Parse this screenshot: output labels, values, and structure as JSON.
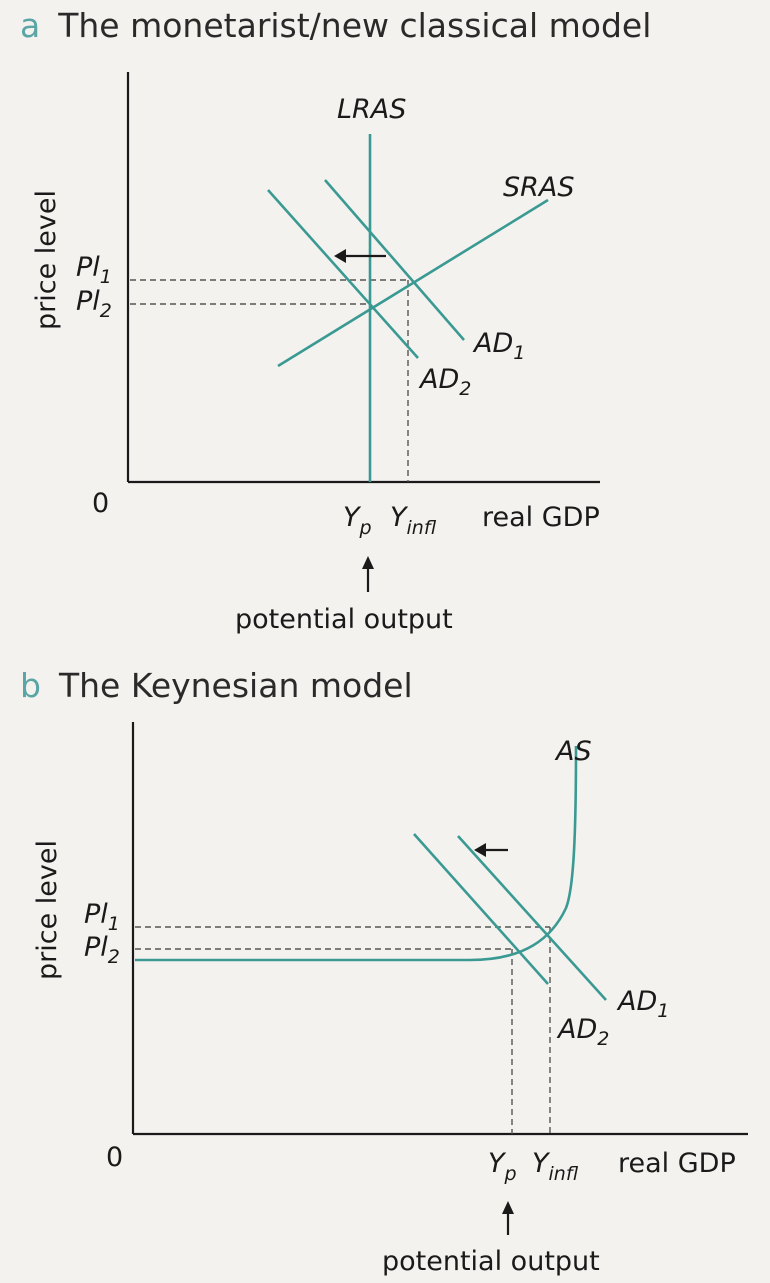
{
  "panel_a": {
    "letter": "a",
    "title": "The monetarist/new classical model",
    "y_axis_label": "price level",
    "x_axis_label": "real GDP",
    "origin_label": "0",
    "pl1_base": "Pl",
    "pl1_sub": "1",
    "pl2_base": "Pl",
    "pl2_sub": "2",
    "yp_base": "Y",
    "yp_sub": "p",
    "yinfl_base": "Y",
    "yinfl_sub": "infl",
    "lras_label": "LRAS",
    "sras_label": "SRAS",
    "ad1_base": "AD",
    "ad1_sub": "1",
    "ad2_base": "AD",
    "ad2_sub": "2",
    "potential_output": "potential output"
  },
  "panel_b": {
    "letter": "b",
    "title": "The Keynesian model",
    "y_axis_label": "price level",
    "x_axis_label": "real GDP",
    "origin_label": "0",
    "pl1_base": "Pl",
    "pl1_sub": "1",
    "pl2_base": "Pl",
    "pl2_sub": "2",
    "yp_base": "Y",
    "yp_sub": "p",
    "yinfl_base": "Y",
    "yinfl_sub": "infl",
    "as_label": "AS",
    "ad1_base": "AD",
    "ad1_sub": "1",
    "ad2_base": "AD",
    "ad2_sub": "2",
    "potential_output": "potential output"
  },
  "colors": {
    "curve": "#3a9a93",
    "heading_letter": "#5aa6a6",
    "axis": "#1a1a1a"
  }
}
